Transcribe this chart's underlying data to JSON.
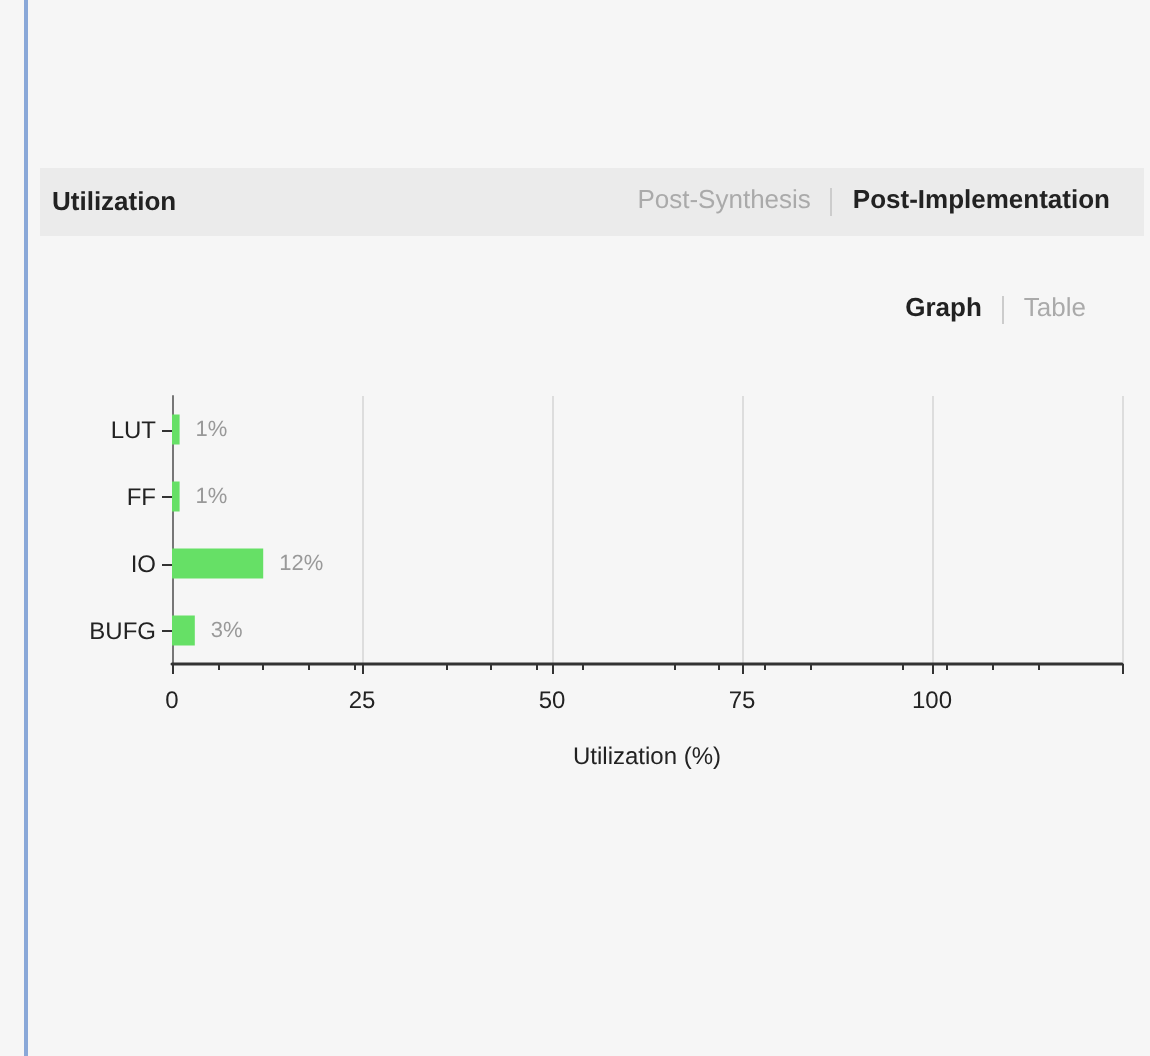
{
  "chart_data": {
    "type": "bar",
    "orientation": "horizontal",
    "title": "Utilization",
    "categories": [
      "LUT",
      "FF",
      "IO",
      "BUFG"
    ],
    "values": [
      1,
      1,
      12,
      3
    ],
    "color": "#66e066",
    "value_labels": [
      "1%",
      "1%",
      "12%",
      "3%"
    ],
    "xlabel": "Utilization (%)",
    "xlim": [
      0,
      125
    ],
    "xticks": [
      0,
      25,
      50,
      75,
      100,
      {
        "value": 125,
        "label": null
      }
    ],
    "grid": "x",
    "annotations": [
      "Post-Synthesis",
      "Post-Implementation",
      "Graph",
      "Table"
    ]
  }
}
